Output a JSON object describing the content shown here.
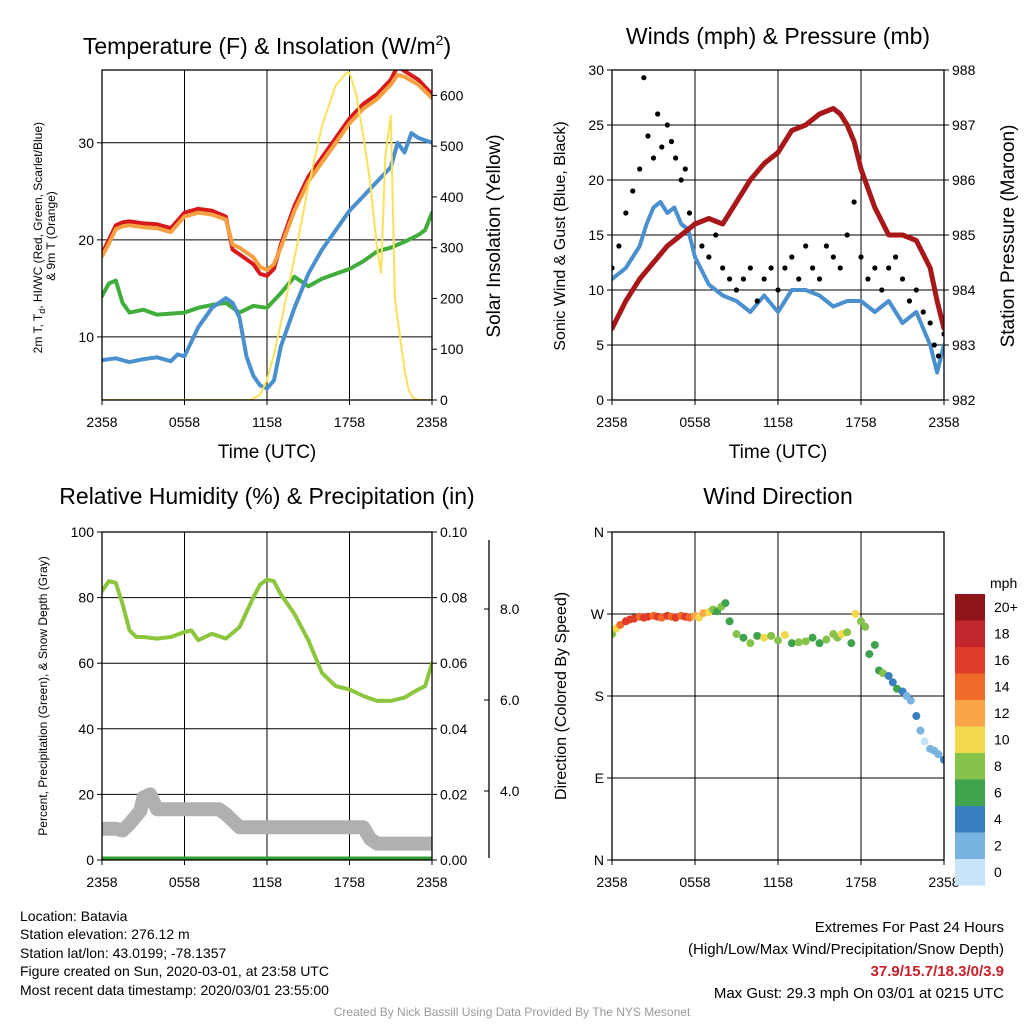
{
  "chart_data": [
    {
      "id": "temperature",
      "type": "line",
      "title": "Temperature (F) & Insolation (W/m²)",
      "xlabel": "Time (UTC)",
      "ylabel": "2m T, Td, HI/WC (Red, Green, Scarlet/Blue) & 9m T (Orange)",
      "ylabel_right": "Solar Insolation (Yellow)",
      "x_ticks": [
        "2358",
        "0558",
        "1158",
        "1758",
        "2358"
      ],
      "y_ticks": [
        10,
        20,
        30
      ],
      "y_right_ticks": [
        0,
        100,
        200,
        300,
        400,
        500,
        600
      ],
      "ylim": [
        3.5,
        37.5
      ],
      "ylim_right": [
        0,
        650
      ],
      "grid": true,
      "series": [
        {
          "name": "2m T",
          "color": "#d7191c",
          "axis": "left",
          "x": [
            0,
            0.5,
            1,
            1.5,
            2,
            3,
            4,
            5,
            6,
            7,
            8,
            9,
            9.5,
            10,
            11,
            11.5,
            12,
            12.5,
            13,
            14,
            15,
            16,
            17,
            18,
            19,
            20,
            21,
            21.5,
            22,
            23,
            24
          ],
          "values": [
            18.6,
            20,
            21.5,
            21.8,
            21.9,
            21.7,
            21.6,
            21.2,
            22.8,
            23.2,
            23.0,
            22.4,
            19,
            18.5,
            17.5,
            16.5,
            16.3,
            17,
            19.5,
            23.5,
            26.5,
            28.5,
            30.5,
            32.5,
            34,
            35,
            36.5,
            37.9,
            37.4,
            36.5,
            35
          ]
        },
        {
          "name": "9m T",
          "color": "#f5a142",
          "axis": "left",
          "x": [
            0,
            0.5,
            1,
            1.5,
            2,
            3,
            4,
            5,
            6,
            7,
            8,
            9,
            9.5,
            10,
            11,
            11.5,
            12,
            12.5,
            13,
            14,
            15,
            16,
            17,
            18,
            19,
            20,
            21,
            21.5,
            22,
            23,
            24
          ],
          "values": [
            18.3,
            19.6,
            21.1,
            21.4,
            21.5,
            21.3,
            21.2,
            20.8,
            22.4,
            22.8,
            22.6,
            22.1,
            19.5,
            19.2,
            18.2,
            17.2,
            16.9,
            17.5,
            19.2,
            23,
            26,
            28,
            30,
            32,
            33.5,
            34.5,
            36,
            37,
            36.8,
            36,
            34.6
          ]
        },
        {
          "name": "Td",
          "color": "#41ae3c",
          "axis": "left",
          "x": [
            0,
            0.5,
            1,
            1.5,
            2,
            3,
            4,
            5,
            6,
            7,
            8,
            9,
            10,
            11,
            12,
            13,
            14,
            15,
            16,
            17,
            18,
            19,
            20,
            21,
            22,
            23,
            23.5,
            24
          ],
          "values": [
            14.2,
            15.5,
            15.8,
            13.5,
            12.5,
            12.8,
            12.3,
            12.4,
            12.5,
            13,
            13.3,
            13.5,
            12.5,
            13.2,
            13,
            14.5,
            16.2,
            15.2,
            16,
            16.5,
            17,
            17.8,
            18.8,
            19.2,
            19.8,
            20.5,
            21,
            22.8
          ]
        },
        {
          "name": "WC",
          "color": "#4a90cf",
          "axis": "left",
          "x": [
            0,
            1,
            2,
            3,
            4,
            5,
            5.5,
            6,
            7,
            8,
            9,
            9.5,
            10,
            10.5,
            11,
            11.5,
            12,
            12.5,
            13,
            14,
            15,
            16,
            17,
            18,
            19,
            20,
            21,
            21.5,
            22,
            22.5,
            23,
            24
          ],
          "values": [
            7.6,
            7.8,
            7.4,
            7.7,
            7.9,
            7.5,
            8.2,
            8,
            11,
            13,
            14,
            13.5,
            12,
            8,
            6,
            5,
            4.7,
            5.5,
            9,
            13,
            16.5,
            19,
            21,
            23,
            24.5,
            26,
            27.5,
            30,
            29,
            31,
            30.5,
            30
          ]
        },
        {
          "name": "Solar Insolation",
          "color": "#f9e25a",
          "axis": "right",
          "x": [
            0,
            10.8,
            11.5,
            12,
            12.5,
            13,
            14,
            15,
            16,
            17,
            17.8,
            18,
            18.5,
            19,
            19.5,
            20,
            20.3,
            20.6,
            21,
            21.3,
            21.7,
            22,
            22.3,
            22.6,
            23,
            23.5,
            24
          ],
          "values": [
            0,
            0,
            10,
            40,
            90,
            150,
            280,
            420,
            540,
            620,
            645,
            645,
            600,
            520,
            430,
            300,
            250,
            480,
            560,
            200,
            120,
            60,
            20,
            5,
            0,
            0,
            0
          ]
        }
      ]
    },
    {
      "id": "winds",
      "type": "line",
      "title": "Winds (mph) & Pressure (mb)",
      "xlabel": "Time (UTC)",
      "ylabel": "Sonic Wind & Gust (Blue, Black)",
      "ylabel_right": "Station Pressure (Maroon)",
      "x_ticks": [
        "2358",
        "0558",
        "1158",
        "1758",
        "2358"
      ],
      "y_ticks": [
        0,
        5,
        10,
        15,
        20,
        25,
        30
      ],
      "y_right_ticks": [
        982,
        983,
        984,
        985,
        986,
        987,
        988
      ],
      "ylim": [
        0,
        30
      ],
      "ylim_right": [
        982,
        988
      ],
      "grid": true,
      "series": [
        {
          "name": "Sonic Wind",
          "color": "#4a90cf",
          "axis": "left",
          "x": [
            0,
            1,
            2,
            2.5,
            3,
            3.5,
            4,
            4.5,
            5,
            5.5,
            6,
            7,
            8,
            9,
            10,
            11,
            12,
            13,
            14,
            15,
            16,
            17,
            18,
            19,
            20,
            21,
            22,
            23,
            23.5,
            24
          ],
          "values": [
            11,
            12,
            14,
            16,
            17.5,
            18,
            17,
            17.5,
            16,
            15.5,
            13,
            10.5,
            9.5,
            9,
            8,
            9.5,
            8,
            10,
            10,
            9.5,
            8.5,
            9,
            9,
            8,
            9,
            7,
            8,
            5,
            2.5,
            5
          ]
        },
        {
          "name": "Gust",
          "color": "#000000",
          "axis": "left",
          "style": "points",
          "x": [
            0,
            0.5,
            1,
            1.5,
            2,
            2.3,
            2.6,
            3,
            3.3,
            3.6,
            4,
            4.3,
            4.6,
            5,
            5.3,
            5.6,
            6,
            6.5,
            7,
            7.5,
            8,
            8.5,
            9,
            9.5,
            10,
            10.5,
            11,
            11.5,
            12,
            12.5,
            13,
            13.5,
            14,
            14.5,
            15,
            15.5,
            16,
            16.5,
            17,
            17.5,
            18,
            18.5,
            19,
            19.5,
            20,
            20.5,
            21,
            21.5,
            22,
            22.5,
            23,
            23.3,
            23.6,
            24
          ],
          "values": [
            12,
            14,
            17,
            19,
            21,
            29.3,
            24,
            22,
            26,
            23,
            25,
            23.5,
            22,
            20,
            21,
            17,
            16,
            14,
            13,
            15,
            12,
            11,
            10,
            11,
            12,
            9,
            11,
            12,
            10,
            12,
            13,
            11,
            14,
            12,
            11,
            14,
            13,
            12,
            15,
            18,
            13,
            11,
            12,
            10,
            12,
            13,
            11,
            9,
            10,
            8,
            7,
            5,
            4,
            6
          ]
        },
        {
          "name": "Station Pressure",
          "color": "#a8181b",
          "axis": "right",
          "x": [
            0,
            1,
            2,
            3,
            4,
            5,
            6,
            7,
            8,
            9,
            10,
            11,
            12,
            13,
            14,
            15,
            16,
            16.5,
            17,
            17.5,
            18,
            19,
            20,
            21,
            22,
            23,
            23.5,
            24
          ],
          "values": [
            983.3,
            983.8,
            984.2,
            984.5,
            984.8,
            985.0,
            985.2,
            985.3,
            985.2,
            985.6,
            986.0,
            986.3,
            986.5,
            986.9,
            987.0,
            987.2,
            987.3,
            987.2,
            987.0,
            986.7,
            986.2,
            985.5,
            985.0,
            985.0,
            984.9,
            984.4,
            983.8,
            983.3
          ]
        }
      ]
    },
    {
      "id": "humidity",
      "type": "line",
      "title": "Relative Humidity (%) & Precipitation (in)",
      "ylabel": "Percent, Precipitation (Green), & Snow Depth (Gray)",
      "x_ticks": [
        "2358",
        "0558",
        "1158",
        "1758",
        "2358"
      ],
      "y_ticks": [
        0,
        20,
        40,
        60,
        80,
        100
      ],
      "y_right_ticks": [
        "0.00",
        "0.02",
        "0.04",
        "0.06",
        "0.08",
        "0.10"
      ],
      "y_far_right_ticks": [
        "4.0",
        "6.0",
        "8.0"
      ],
      "ylim": [
        0,
        100
      ],
      "ylim_right": [
        0,
        0.1
      ],
      "grid": true,
      "series": [
        {
          "name": "RH",
          "color": "#8cc63e",
          "axis": "left",
          "x": [
            0,
            0.5,
            1,
            1.5,
            2,
            2.5,
            3,
            4,
            5,
            6,
            6.5,
            7,
            8,
            9,
            10,
            11,
            11.5,
            12,
            12.5,
            13,
            14,
            15,
            16,
            17,
            18,
            19,
            20,
            21,
            22,
            23,
            23.5,
            24
          ],
          "values": [
            82,
            85,
            84.5,
            78,
            70,
            68,
            68,
            67.5,
            68,
            69.5,
            70,
            67,
            69,
            67.5,
            71,
            80,
            84,
            85.5,
            85,
            81,
            75,
            67,
            57,
            53,
            52,
            50,
            48.5,
            48.5,
            49.5,
            52,
            53,
            60
          ]
        },
        {
          "name": "Snow Depth",
          "color": "#b0b0b0",
          "axis": "left",
          "x": [
            0,
            1,
            1.5,
            2,
            2.8,
            3,
            3.5,
            4,
            5,
            6,
            7,
            8,
            8.5,
            9,
            10,
            12,
            14,
            16,
            18,
            19,
            19.5,
            20,
            22,
            24
          ],
          "values": [
            9.5,
            9.5,
            9,
            11,
            15,
            19,
            20,
            15.5,
            15.5,
            15.5,
            15.5,
            15.5,
            15.5,
            14,
            10,
            10,
            10,
            10,
            10,
            10,
            6.5,
            5,
            5,
            5
          ]
        },
        {
          "name": "Precipitation",
          "color": "#2f9e33",
          "axis": "right",
          "x": [
            0,
            24
          ],
          "values": [
            0,
            0
          ]
        }
      ]
    },
    {
      "id": "direction",
      "type": "scatter",
      "title": "Wind Direction",
      "ylabel": "Direction (Colored By Speed)",
      "x_ticks": [
        "2358",
        "0558",
        "1158",
        "1758",
        "2358"
      ],
      "y_ticks": [
        "N",
        "E",
        "S",
        "W",
        "N"
      ],
      "ylim": [
        0,
        360
      ],
      "grid": true,
      "colorbar": {
        "title": "mph",
        "labels": [
          "20+",
          "18",
          "16",
          "14",
          "12",
          "10",
          "8",
          "6",
          "4",
          "2",
          "0"
        ],
        "colors": [
          "#8f1519",
          "#c1272d",
          "#e03a28",
          "#f06a2a",
          "#fba54a",
          "#f2d94e",
          "#86c34b",
          "#3fa34d",
          "#3a80c0",
          "#79b3e0",
          "#c6e3f7"
        ]
      },
      "points": {
        "x": [
          0,
          0.3,
          0.6,
          1,
          1.3,
          1.6,
          2,
          2.3,
          2.6,
          3,
          3.3,
          3.6,
          4,
          4.3,
          4.6,
          5,
          5.3,
          5.6,
          6,
          6.3,
          6.6,
          7,
          7.3,
          7.6,
          7.9,
          8.2,
          8.5,
          9,
          9.5,
          10,
          10.5,
          11,
          11.5,
          12,
          12.5,
          13,
          13.5,
          14,
          14.5,
          15,
          15.5,
          16,
          16.3,
          16.6,
          17,
          17.3,
          17.6,
          18,
          18.3,
          18.6,
          19,
          19.3,
          19.6,
          20,
          20.3,
          20.6,
          21,
          21.3,
          21.6,
          22,
          22.3,
          22.6,
          23,
          23.3,
          23.6,
          24
        ],
        "values": [
          248,
          254,
          258,
          262,
          264,
          265,
          267,
          266,
          267,
          268,
          267,
          266,
          268,
          267,
          266,
          268,
          267,
          266,
          268,
          266,
          271,
          272,
          275,
          273,
          278,
          282,
          262,
          248,
          244,
          238,
          246,
          244,
          246,
          241,
          247,
          238,
          239,
          240,
          244,
          238,
          242,
          248,
          244,
          248,
          250,
          238,
          270,
          262,
          256,
          226,
          236,
          208,
          205,
          202,
          195,
          188,
          185,
          180,
          175,
          158,
          142,
          130,
          122,
          120,
          116,
          110
        ],
        "speeds": [
          8,
          10,
          14,
          16,
          17,
          16,
          14,
          17,
          16,
          15,
          16,
          14,
          16,
          15,
          17,
          15,
          16,
          14,
          12,
          10,
          12,
          10,
          8,
          6,
          8,
          6,
          7,
          8,
          6,
          8,
          7,
          10,
          9,
          8,
          10,
          7,
          8,
          9,
          7,
          6,
          8,
          8,
          9,
          10,
          8,
          7,
          10,
          8,
          9,
          6,
          7,
          6,
          8,
          5,
          4,
          6,
          4,
          3,
          2,
          4,
          2,
          1,
          2,
          3,
          2,
          4
        ]
      }
    }
  ],
  "station": {
    "location": "Location: Batavia",
    "elevation": "Station elevation: 276.12 m",
    "latlon": "Station lat/lon: 43.0199; -78.1357",
    "created": "Figure created on Sun, 2020-03-01, at 23:58 UTC",
    "recent": "Most recent data timestamp: 2020/03/01 23:55:00"
  },
  "extremes": {
    "title": "Extremes For Past 24 Hours",
    "subtitle": "(High/Low/Max Wind/Precipitation/Snow Depth)",
    "values": "37.9/15.7/18.3/0/3.9",
    "gust": "Max Gust: 29.3 mph On 03/01 at 0215 UTC"
  },
  "credit": "Created By Nick Bassill Using Data Provided By The NYS Mesonet"
}
